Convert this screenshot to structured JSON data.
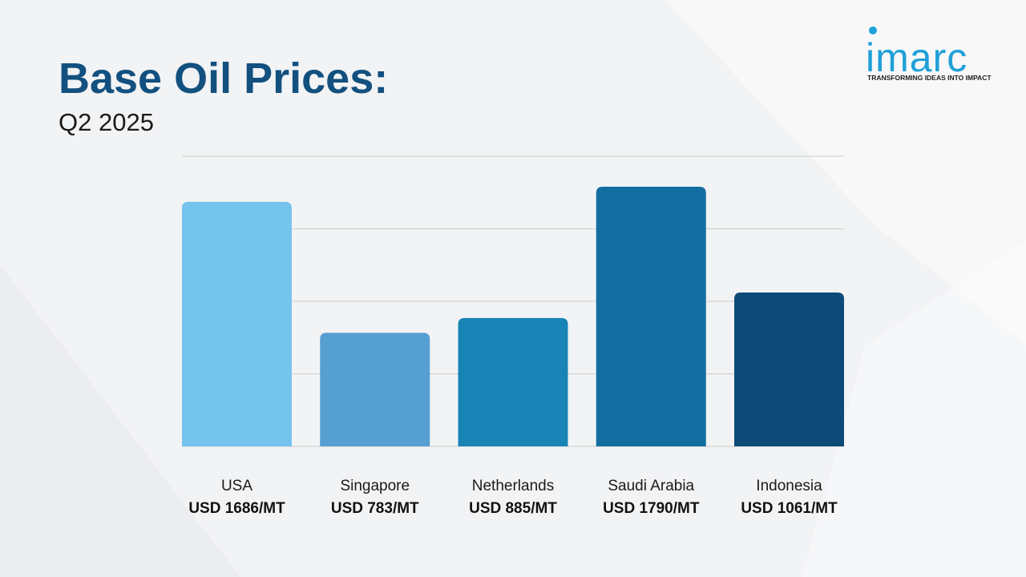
{
  "title": "Base Oil Prices:",
  "subtitle": "Q2 2025",
  "logo": {
    "wordmark": "imarc",
    "tagline": "TRANSFORMING IDEAS INTO IMPACT"
  },
  "colors": {
    "title": "#12507f",
    "brand": "#1fa0d8",
    "bars": [
      "#74c4ee",
      "#569fd1",
      "#1784b5",
      "#126ea1",
      "#0e4a78"
    ],
    "grid": "#cccccc"
  },
  "chart_data": {
    "type": "bar",
    "title": "Base Oil Prices:",
    "subtitle": "Q2 2025",
    "categories": [
      "USA",
      "Singapore",
      "Netherlands",
      "Saudi Arabia",
      "Indonesia"
    ],
    "values": [
      1686,
      783,
      885,
      1790,
      1061
    ],
    "value_labels": [
      "USD 1686/MT",
      "USD 783/MT",
      "USD 885/MT",
      "USD 1790/MT",
      "USD 1061/MT"
    ],
    "unit": "USD/MT",
    "ylim": [
      0,
      2000
    ],
    "grid": true,
    "legend": false,
    "xlabel": "",
    "ylabel": ""
  }
}
